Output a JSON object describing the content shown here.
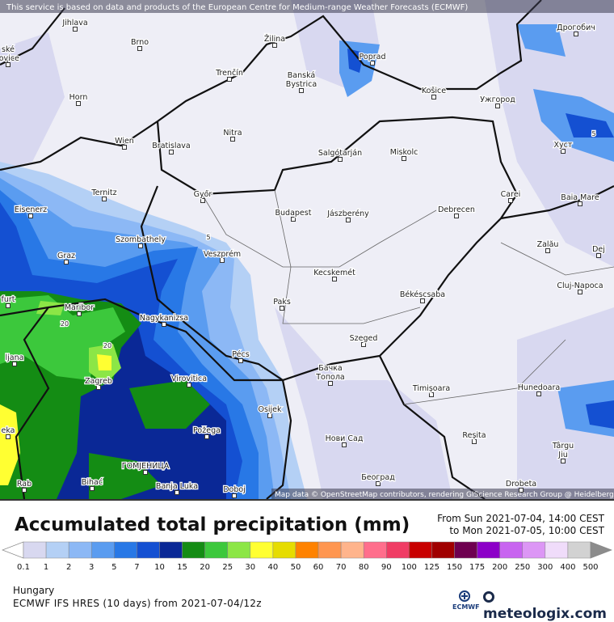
{
  "notice": "This service is based on data and products of the European Centre for Medium-range Weather Forecasts (ECMWF)",
  "attribution": "Map data © OpenStreetMap contributors, rendering GIScience Research Group @ Heidelberg University",
  "cities": [
    "Jihlava",
    "Brno",
    "Žilina",
    "Poprad",
    "Дрогобич",
    [
      "Banská",
      "Bystrica"
    ],
    "Trenčín",
    "Horn",
    "Košice",
    "Ужгород",
    "Nitra",
    "Wien",
    "Bratislava",
    "Salgótarján",
    "Miskolc",
    "Хуст",
    "Ternitz",
    "Győr",
    "Carei",
    "Baia Mare",
    "Eisenerz",
    "Budapest",
    "Jászberény",
    "Debrecen",
    "Szombathely",
    "Zalău",
    "Graz",
    "Veszprém",
    "Dej",
    "Kecskemét",
    "Cluj-Napoca",
    "Békéscsaba",
    "Paks",
    "Maribor",
    "Nagykanizsa",
    "Szeged",
    "Pécs",
    "Zagreb",
    "Virovitica",
    [
      "Бачка",
      "Топола"
    ],
    "Timișoara",
    "Hunedoara",
    "Osijek",
    "Požega",
    "Нови Сад",
    "Reșita",
    [
      "Târgu",
      "Jiu"
    ],
    "ГОМЈЕНИЦА",
    "Bihać",
    "Banja Luka",
    "Doboj",
    "Београд",
    "Drobeta",
    "ljana",
    "furt",
    "Rab",
    "eka",
    [
      "ské",
      "jovice"
    ]
  ],
  "contour_labels": [
    "5",
    "5",
    "20",
    "20"
  ],
  "title": "Accumulated total precipitation (mm)",
  "period_from": "From Sun 2021-07-04, 14:00 CEST",
  "period_to": "to Mon 2021-07-05, 10:00 CEST",
  "legend": {
    "labels": [
      "0.1",
      "1",
      "2",
      "3",
      "5",
      "7",
      "10",
      "15",
      "20",
      "25",
      "30",
      "40",
      "50",
      "60",
      "70",
      "80",
      "90",
      "100",
      "125",
      "150",
      "175",
      "200",
      "250",
      "300",
      "400",
      "500"
    ],
    "colors": [
      "#ffffff",
      "#d8d8f0",
      "#b4d0f5",
      "#8cb8f5",
      "#5a9cf0",
      "#2878e6",
      "#1450d2",
      "#0a2896",
      "#148c14",
      "#3cc83c",
      "#8ce646",
      "#ffff32",
      "#e6dc00",
      "#ff8200",
      "#ff9650",
      "#ffb48c",
      "#ff6e8c",
      "#f03c64",
      "#c80000",
      "#a00000",
      "#6e0050",
      "#8c00c8",
      "#c864f0",
      "#dc96f5",
      "#f0dcfa",
      "#d2d2d2",
      "#8c8c8c"
    ]
  },
  "region": "Hungary",
  "model": "ECMWF IFS HRES (10 days) from 2021-07-04/12z",
  "ecmwf_logo": "ECMWF",
  "brand": "meteologix.com"
}
